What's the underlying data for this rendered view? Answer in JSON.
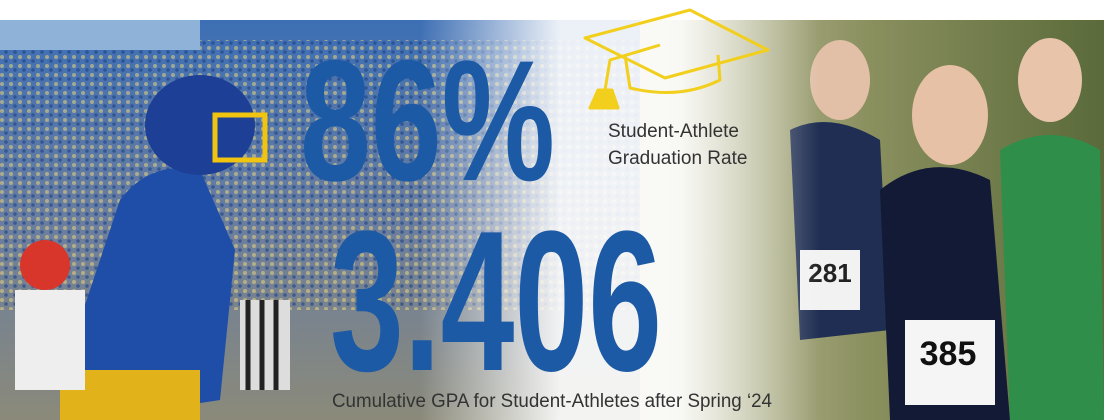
{
  "stats": [
    {
      "value": "86%",
      "label_lines": [
        "Student-Athlete",
        "Graduation Rate"
      ]
    },
    {
      "value": "3.406",
      "label": "Cumulative GPA for Student-Athletes after Spring ‘24"
    }
  ],
  "photo_text": {
    "bibs": [
      "281",
      "385"
    ]
  }
}
